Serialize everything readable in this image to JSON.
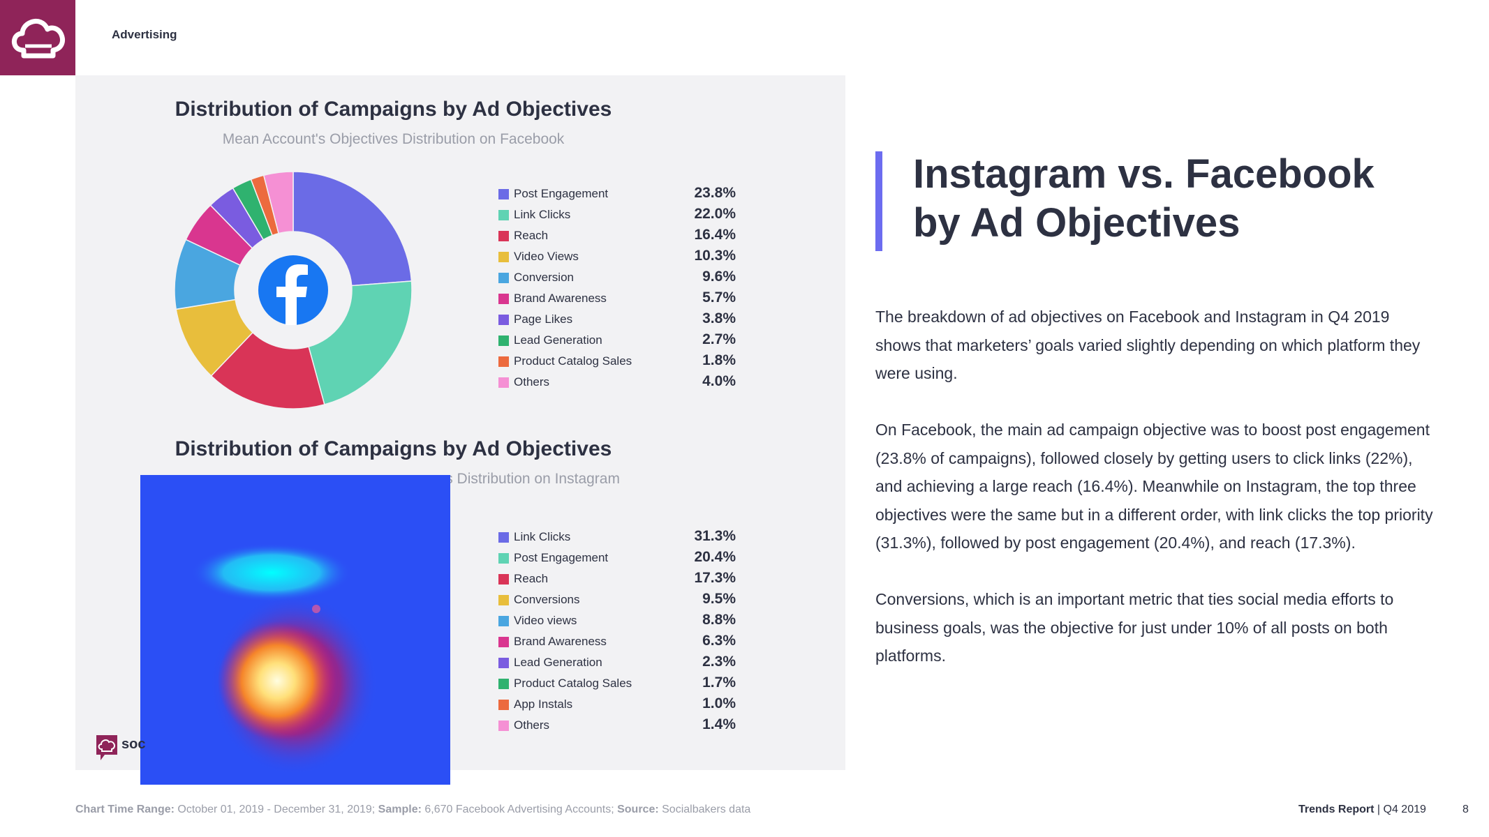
{
  "header": {
    "section": "Advertising"
  },
  "charts": {
    "facebook": {
      "title": "Distribution of Campaigns by Ad Objectives",
      "subtitle": "Mean Account's Objectives Distribution on Facebook"
    },
    "instagram": {
      "title": "Distribution of Campaigns by Ad Objectives",
      "subtitle_visible": "ves Distribution on Instagram"
    }
  },
  "chart_data": [
    {
      "type": "pie",
      "title": "Distribution of Campaigns by Ad Objectives",
      "subtitle": "Mean Account's Objectives Distribution on Facebook",
      "categories": [
        "Post Engagement",
        "Link Clicks",
        "Reach",
        "Video Views",
        "Conversion",
        "Brand Awareness",
        "Page Likes",
        "Lead Generation",
        "Product Catalog Sales",
        "Others"
      ],
      "values": [
        23.8,
        22.0,
        16.4,
        10.3,
        9.6,
        5.7,
        3.8,
        2.7,
        1.8,
        4.0
      ],
      "labels": [
        "23.8%",
        "22.0%",
        "16.4%",
        "10.3%",
        "9.6%",
        "5.7%",
        "3.8%",
        "2.7%",
        "1.8%",
        "4.0%"
      ],
      "colors": [
        "#6b6be6",
        "#5fd3b3",
        "#d93457",
        "#e8be3c",
        "#4aa6e0",
        "#d9368f",
        "#7a5ce0",
        "#2fb26f",
        "#ec6a3e",
        "#f590d4"
      ],
      "legend": "right"
    },
    {
      "type": "pie",
      "title": "Distribution of Campaigns by Ad Objectives",
      "subtitle": "ves Distribution on Instagram",
      "categories": [
        "Link Clicks",
        "Post Engagement",
        "Reach",
        "Conversions",
        "Video views",
        "Brand Awareness",
        "Lead Generation",
        "Product Catalog Sales",
        "App Instals",
        "Others"
      ],
      "values": [
        31.3,
        20.4,
        17.3,
        9.5,
        8.8,
        6.3,
        2.3,
        1.7,
        1.0,
        1.4
      ],
      "labels": [
        "31.3%",
        "20.4%",
        "17.3%",
        "9.5%",
        "8.8%",
        "6.3%",
        "2.3%",
        "1.7%",
        "1.0%",
        "1.4%"
      ],
      "colors": [
        "#6b6be6",
        "#5fd3b3",
        "#d93457",
        "#e8be3c",
        "#4aa6e0",
        "#d9368f",
        "#7a5ce0",
        "#2fb26f",
        "#ec6a3e",
        "#f590d4"
      ],
      "legend": "right"
    }
  ],
  "brand": {
    "partial_name": "soc",
    "accent_color": "#8f2459"
  },
  "article": {
    "headline_line1": "Instagram vs. Facebook",
    "headline_line2": "by Ad Objectives",
    "paragraphs": [
      "The breakdown of ad objectives on Facebook and Instagram in Q4 2019 shows that marketers’ goals varied slightly depending on which platform they were using.",
      "On Facebook, the main ad campaign objective was to boost post engagement (23.8% of campaigns), followed closely by getting users to click links (22%), and achieving a large reach (16.4%). Meanwhile on Instagram, the top three objectives were the same but in a different order, with link clicks the top priority (31.3%), followed by post engagement (20.4%), and reach (17.3%).",
      "Conversions, which is an important metric that ties social media efforts to business goals, was the objective for just under 10% of all posts on both platforms."
    ]
  },
  "footer": {
    "range_label": "Chart Time Range:",
    "range_value": " October  01, 2019 - December 31, 2019;",
    "sample_label": " Sample:",
    "sample_value": " 6,670 Facebook Advertising Accounts;",
    "source_label": " Source:",
    "source_value": " Socialbakers data",
    "report_name": "Trends Report",
    "report_period": " | Q4 2019",
    "page_number": "8"
  }
}
